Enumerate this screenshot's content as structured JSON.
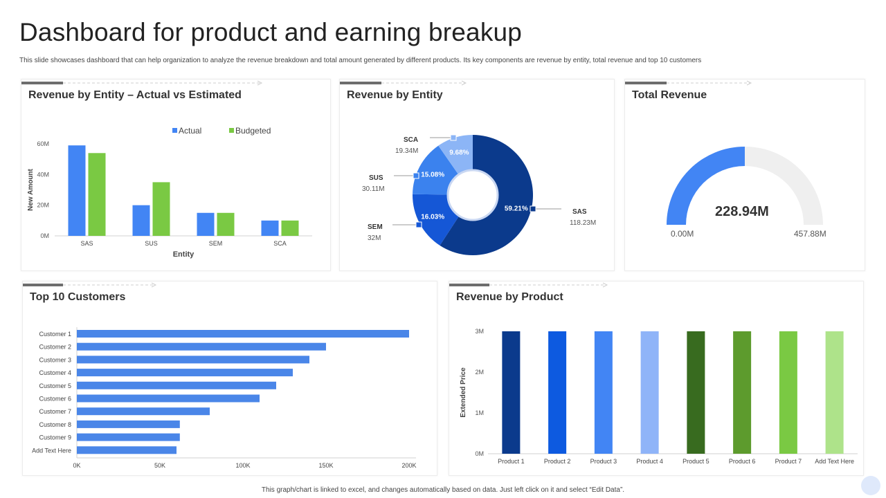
{
  "page": {
    "title": "Dashboard for product and earning breakup",
    "subtitle": "This slide showcases dashboard that can help organization to analyze the revenue breakdown and total amount  generated by different products. Its key components are revenue by entity, total revenue and top 10 customers",
    "footer": "This graph/chart is linked to excel, and changes automatically based on data. Just left click on it and select “Edit Data”."
  },
  "colors": {
    "actual": "#4285f4",
    "budgeted": "#7ac943",
    "bar_blue": "#4a86e8",
    "dark_navy": "#0b3a8c",
    "gauge_fill": "#4285f4",
    "gauge_track": "#efefef"
  },
  "cards": {
    "entity_actual": {
      "title": "Revenue by Entity – Actual vs Estimated"
    },
    "entity_donut": {
      "title": "Revenue by Entity"
    },
    "total": {
      "title": "Total Revenue"
    },
    "customers": {
      "title": "Top 10 Customers"
    },
    "product": {
      "title": "Revenue by Product"
    }
  },
  "chart_data": [
    {
      "id": "entity_actual",
      "type": "bar",
      "title": "Revenue by Entity – Actual vs Estimated",
      "categories": [
        "SAS",
        "SUS",
        "SEM",
        "SCA"
      ],
      "series": [
        {
          "name": "Actual",
          "values": [
            59,
            20,
            15,
            10
          ]
        },
        {
          "name": "Budgeted",
          "values": [
            54,
            35,
            15,
            10
          ]
        }
      ],
      "yticks": [
        "0M",
        "20M",
        "40M",
        "60M"
      ],
      "ylim": [
        0,
        60
      ],
      "xlabel": "Entity",
      "ylabel": "New Amount"
    },
    {
      "id": "entity_donut",
      "type": "pie",
      "title": "Revenue by Entity",
      "slices": [
        {
          "name": "SAS",
          "value": 118.23,
          "value_label": "118.23M",
          "pct_label": "59.21%",
          "color": "#0b3a8c"
        },
        {
          "name": "SEM",
          "value": 32,
          "value_label": "32M",
          "pct_label": "16.03%",
          "color": "#1557d6"
        },
        {
          "name": "SUS",
          "value": 30.11,
          "value_label": "30.11M",
          "pct_label": "15.08%",
          "color": "#3b82ee"
        },
        {
          "name": "SCA",
          "value": 19.34,
          "value_label": "19.34M",
          "pct_label": "9.68%",
          "color": "#8cb5f6"
        }
      ]
    },
    {
      "id": "total",
      "type": "gauge",
      "title": "Total Revenue",
      "value": 228.94,
      "max": 457.88,
      "value_label": "228.94M",
      "min_label": "0.00M",
      "max_label": "457.88M"
    },
    {
      "id": "customers",
      "type": "bar",
      "orientation": "horizontal",
      "title": "Top 10 Customers",
      "categories": [
        "Customer 1",
        "Customer 2",
        "Customer 3",
        "Customer 4",
        "Customer 5",
        "Customer 6",
        "Customer 7",
        "Customer 8",
        "Customer 9",
        "Add Text Here"
      ],
      "values": [
        200000,
        150000,
        140000,
        130000,
        120000,
        110000,
        80000,
        62000,
        62000,
        60000
      ],
      "xticks": [
        "0K",
        "50K",
        "100K",
        "150K",
        "200K"
      ],
      "xlim": [
        0,
        200000
      ]
    },
    {
      "id": "product",
      "type": "bar",
      "title": "Revenue by Product",
      "categories": [
        "Product 1",
        "Product 2",
        "Product 3",
        "Product 4",
        "Product 5",
        "Product 6",
        "Product 7",
        "Add Text Here"
      ],
      "values": [
        3,
        3,
        3,
        3,
        3,
        3,
        3,
        3
      ],
      "colors": [
        "#0b3a8c",
        "#0d5ae0",
        "#4285f4",
        "#8fb4f8",
        "#386b1f",
        "#5d9b2d",
        "#7ac943",
        "#aee38a"
      ],
      "yticks": [
        "0M",
        "1M",
        "2M",
        "3M"
      ],
      "ylim": [
        0,
        3
      ],
      "ylabel": "Extended Price"
    }
  ]
}
